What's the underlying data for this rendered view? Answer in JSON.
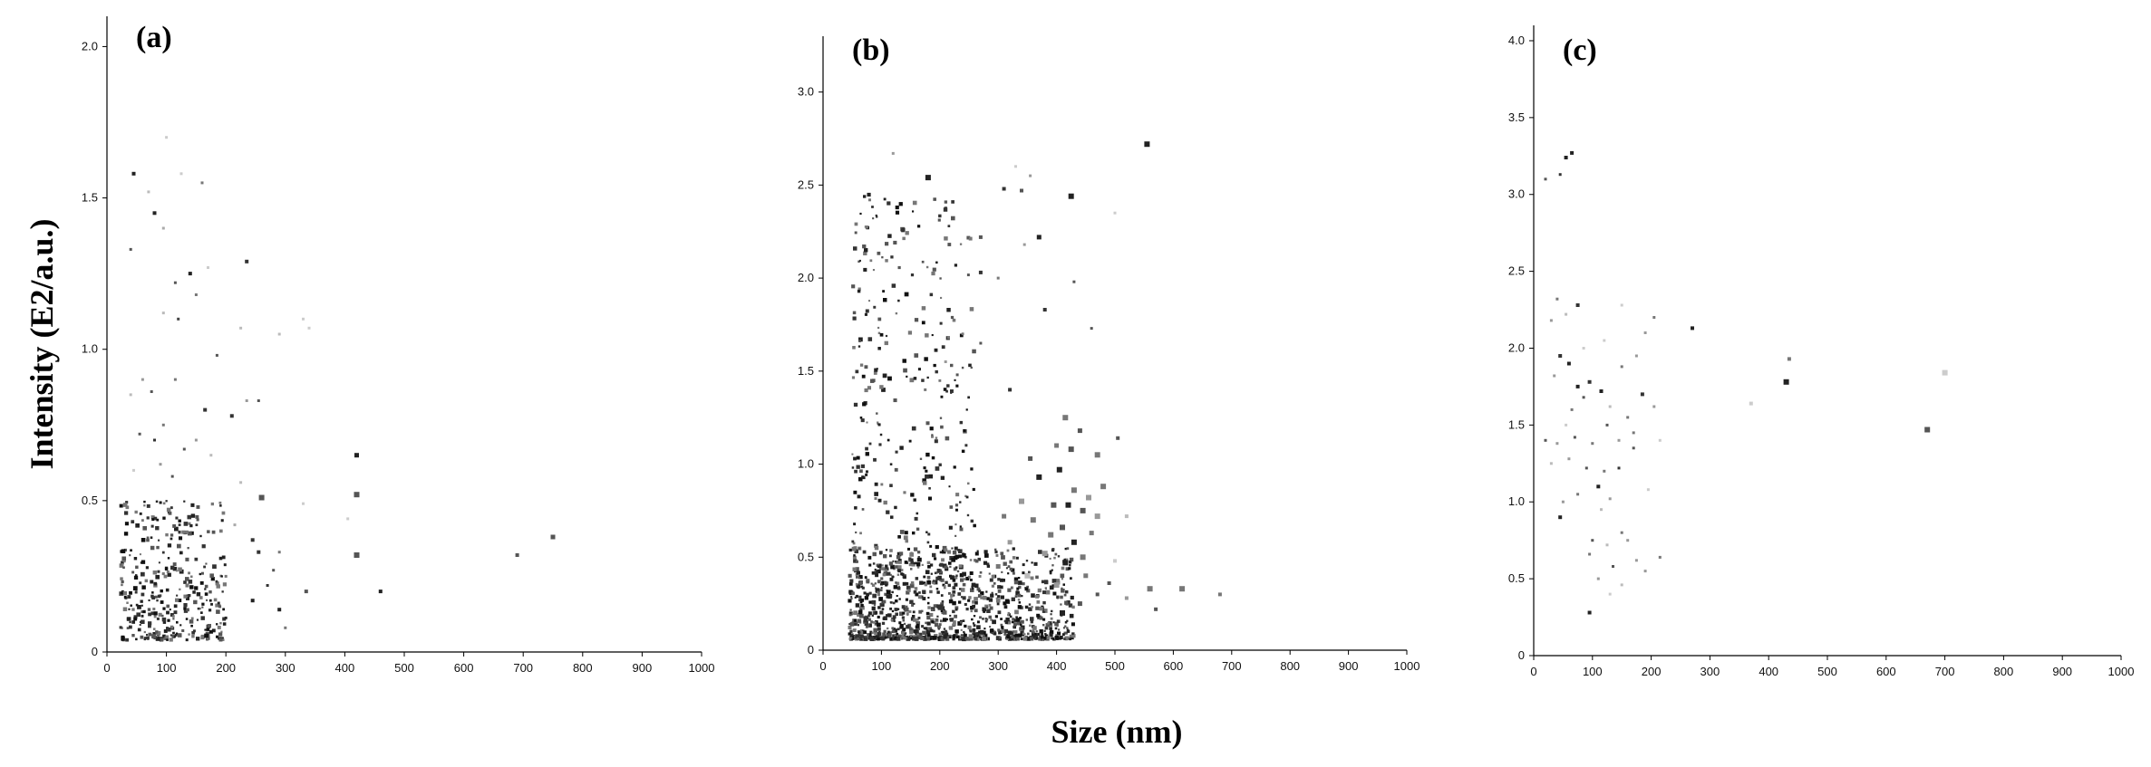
{
  "figure": {
    "ylabel": "Intensity (E2/a.u.)",
    "xlabel": "Size (nm)"
  },
  "chart_data": [
    {
      "type": "scatter",
      "panel_label": "(a)",
      "xlim": [
        0,
        1000
      ],
      "ylim": [
        0,
        2.1
      ],
      "x_ticks": [
        0,
        100,
        200,
        300,
        400,
        500,
        600,
        700,
        800,
        900,
        1000
      ],
      "x_tick_labels": [
        "0",
        "100",
        "200",
        "300",
        "400",
        "500",
        "600",
        "700",
        "800",
        "900",
        "1000"
      ],
      "y_ticks": [
        0,
        0.5,
        1.0,
        1.5,
        2.0
      ],
      "y_tick_labels": [
        "0",
        "0.5",
        "1.0",
        "1.5",
        "2.0"
      ],
      "grid": false,
      "points": [
        [
          45,
          1.58,
          2,
          "#222222"
        ],
        [
          80,
          1.45,
          2,
          "#222222"
        ],
        [
          100,
          1.7,
          1.5,
          "#cccccc"
        ],
        [
          70,
          1.52,
          1.5,
          "#bbbbbb"
        ],
        [
          160,
          1.55,
          1.5,
          "#777777"
        ],
        [
          40,
          1.33,
          1.5,
          "#555555"
        ],
        [
          95,
          1.4,
          1.5,
          "#aaaaaa"
        ],
        [
          125,
          1.58,
          1.5,
          "#cccccc"
        ],
        [
          140,
          1.25,
          2,
          "#222222"
        ],
        [
          235,
          1.29,
          2,
          "#333333"
        ],
        [
          115,
          1.22,
          1.5,
          "#555555"
        ],
        [
          150,
          1.18,
          1.5,
          "#777777"
        ],
        [
          120,
          1.1,
          1.5,
          "#444444"
        ],
        [
          95,
          1.12,
          1.5,
          "#bbbbbb"
        ],
        [
          170,
          1.27,
          1.5,
          "#cccccc"
        ],
        [
          330,
          1.1,
          1.5,
          "#cccccc"
        ],
        [
          340,
          1.07,
          1.5,
          "#cccccc"
        ],
        [
          225,
          1.07,
          1.5,
          "#bbbbbb"
        ],
        [
          185,
          0.98,
          1.5,
          "#555555"
        ],
        [
          290,
          1.05,
          1.5,
          "#bbbbbb"
        ],
        [
          40,
          0.85,
          1.5,
          "#bbbbbb"
        ],
        [
          60,
          0.9,
          1.5,
          "#999999"
        ],
        [
          75,
          0.86,
          1.5,
          "#555555"
        ],
        [
          115,
          0.9,
          1.5,
          "#777777"
        ],
        [
          165,
          0.8,
          2,
          "#333333"
        ],
        [
          210,
          0.78,
          2,
          "#333333"
        ],
        [
          255,
          0.83,
          1.5,
          "#555555"
        ],
        [
          235,
          0.83,
          1.5,
          "#999999"
        ],
        [
          55,
          0.72,
          1.5,
          "#555555"
        ],
        [
          80,
          0.7,
          1.5,
          "#333333"
        ],
        [
          95,
          0.75,
          1.5,
          "#777777"
        ],
        [
          130,
          0.67,
          1.5,
          "#555555"
        ],
        [
          150,
          0.7,
          1.5,
          "#999999"
        ],
        [
          175,
          0.65,
          1.5,
          "#bbbbbb"
        ],
        [
          45,
          0.6,
          1.5,
          "#cccccc"
        ],
        [
          90,
          0.62,
          1.5,
          "#999999"
        ],
        [
          110,
          0.58,
          1.5,
          "#555555"
        ],
        [
          420,
          0.65,
          2.5,
          "#222222"
        ],
        [
          420,
          0.52,
          3,
          "#555555"
        ],
        [
          260,
          0.51,
          3,
          "#555555"
        ],
        [
          420,
          0.32,
          3,
          "#555555"
        ],
        [
          460,
          0.2,
          2,
          "#222222"
        ],
        [
          405,
          0.44,
          1.5,
          "#cccccc"
        ],
        [
          330,
          0.49,
          1.5,
          "#cccccc"
        ],
        [
          690,
          0.32,
          2,
          "#555555"
        ],
        [
          750,
          0.38,
          2.5,
          "#555555"
        ],
        [
          245,
          0.37,
          2,
          "#333333"
        ],
        [
          255,
          0.33,
          2,
          "#333333"
        ],
        [
          290,
          0.33,
          1.5,
          "#777777"
        ],
        [
          280,
          0.27,
          1.5,
          "#555555"
        ],
        [
          270,
          0.22,
          1.5,
          "#333333"
        ],
        [
          245,
          0.17,
          2,
          "#222222"
        ],
        [
          290,
          0.14,
          2,
          "#222222"
        ],
        [
          300,
          0.08,
          1.5,
          "#777777"
        ],
        [
          335,
          0.2,
          2,
          "#555555"
        ],
        [
          225,
          0.56,
          1.5,
          "#bbbbbb"
        ],
        [
          200,
          0.25,
          1.5,
          "#777777"
        ],
        [
          190,
          0.15,
          1.5,
          "#555555"
        ],
        [
          215,
          0.42,
          1.5,
          "#aaaaaa"
        ]
      ],
      "cluster": {
        "seed": 11,
        "count": 360,
        "x_min": 22,
        "x_max": 200,
        "y_min": 0.04,
        "y_max": 0.5,
        "skew": 1.6
      }
    },
    {
      "type": "scatter",
      "panel_label": "(b)",
      "xlim": [
        0,
        1000
      ],
      "ylim": [
        0,
        3.3
      ],
      "x_ticks": [
        0,
        100,
        200,
        300,
        400,
        500,
        600,
        700,
        800,
        900,
        1000
      ],
      "x_tick_labels": [
        "0",
        "100",
        "200",
        "300",
        "400",
        "500",
        "600",
        "700",
        "800",
        "900",
        "1000"
      ],
      "y_ticks": [
        0,
        0.5,
        1.0,
        1.5,
        2.0,
        2.5,
        3.0
      ],
      "y_tick_labels": [
        "0",
        "0.5",
        "1.0",
        "1.5",
        "2.0",
        "2.5",
        "3.0"
      ],
      "grid": false,
      "points": [
        [
          555,
          2.72,
          3,
          "#222222"
        ],
        [
          180,
          2.54,
          3,
          "#222222"
        ],
        [
          425,
          2.44,
          3,
          "#222222"
        ],
        [
          310,
          2.48,
          2,
          "#333333"
        ],
        [
          340,
          2.47,
          2,
          "#555555"
        ],
        [
          330,
          2.6,
          1.5,
          "#cccccc"
        ],
        [
          355,
          2.55,
          1.5,
          "#999999"
        ],
        [
          120,
          2.67,
          1.5,
          "#999999"
        ],
        [
          80,
          2.42,
          1.5,
          "#777777"
        ],
        [
          270,
          2.22,
          2,
          "#555555"
        ],
        [
          370,
          2.22,
          2.5,
          "#222222"
        ],
        [
          345,
          2.18,
          1.5,
          "#999999"
        ],
        [
          500,
          2.35,
          1.5,
          "#cccccc"
        ],
        [
          270,
          2.03,
          2,
          "#333333"
        ],
        [
          300,
          2.0,
          1.5,
          "#777777"
        ],
        [
          380,
          1.83,
          2,
          "#333333"
        ],
        [
          430,
          1.98,
          1.5,
          "#555555"
        ],
        [
          460,
          1.73,
          1.5,
          "#555555"
        ],
        [
          215,
          1.68,
          1.5,
          "#777777"
        ],
        [
          270,
          1.65,
          1.5,
          "#555555"
        ],
        [
          210,
          1.55,
          1.5,
          "#999999"
        ],
        [
          230,
          1.48,
          1.5,
          "#555555"
        ],
        [
          175,
          1.4,
          1.5,
          "#777777"
        ],
        [
          320,
          1.4,
          2,
          "#333333"
        ],
        [
          470,
          1.05,
          3,
          "#777777"
        ],
        [
          415,
          1.25,
          3,
          "#777777"
        ],
        [
          440,
          1.18,
          2.5,
          "#555555"
        ],
        [
          400,
          1.1,
          2.5,
          "#777777"
        ],
        [
          425,
          1.08,
          3,
          "#555555"
        ],
        [
          370,
          0.93,
          3,
          "#222222"
        ],
        [
          405,
          0.97,
          3,
          "#222222"
        ],
        [
          430,
          0.86,
          3,
          "#777777"
        ],
        [
          455,
          0.82,
          3,
          "#999999"
        ],
        [
          480,
          0.88,
          3,
          "#777777"
        ],
        [
          395,
          0.78,
          3,
          "#555555"
        ],
        [
          420,
          0.78,
          3,
          "#222222"
        ],
        [
          445,
          0.75,
          3,
          "#555555"
        ],
        [
          470,
          0.72,
          3,
          "#999999"
        ],
        [
          360,
          0.7,
          3,
          "#777777"
        ],
        [
          390,
          0.62,
          3,
          "#777777"
        ],
        [
          410,
          0.66,
          3,
          "#555555"
        ],
        [
          430,
          0.58,
          3,
          "#222222"
        ],
        [
          460,
          0.63,
          2.5,
          "#777777"
        ],
        [
          380,
          0.52,
          3,
          "#999999"
        ],
        [
          415,
          0.47,
          3,
          "#222222"
        ],
        [
          445,
          0.5,
          3,
          "#777777"
        ],
        [
          500,
          0.48,
          2,
          "#cccccc"
        ],
        [
          520,
          0.72,
          2,
          "#bbbbbb"
        ],
        [
          505,
          1.14,
          2,
          "#555555"
        ],
        [
          355,
          1.03,
          2.5,
          "#555555"
        ],
        [
          340,
          0.8,
          3,
          "#999999"
        ],
        [
          310,
          0.72,
          2.5,
          "#777777"
        ],
        [
          320,
          0.58,
          2.5,
          "#999999"
        ],
        [
          300,
          0.45,
          2.5,
          "#777777"
        ],
        [
          350,
          0.4,
          3,
          "#bbbbbb"
        ],
        [
          400,
          0.35,
          3,
          "#999999"
        ],
        [
          410,
          0.2,
          3,
          "#222222"
        ],
        [
          440,
          0.25,
          2.5,
          "#555555"
        ],
        [
          470,
          0.3,
          2,
          "#555555"
        ],
        [
          560,
          0.33,
          3,
          "#777777"
        ],
        [
          615,
          0.33,
          3,
          "#777777"
        ],
        [
          570,
          0.22,
          2,
          "#555555"
        ],
        [
          680,
          0.3,
          2,
          "#777777"
        ],
        [
          520,
          0.28,
          2,
          "#999999"
        ],
        [
          450,
          0.4,
          2.5,
          "#777777"
        ],
        [
          490,
          0.36,
          2,
          "#555555"
        ]
      ],
      "clusters": [
        {
          "seed": 23,
          "count": 1100,
          "x_min": 45,
          "x_max": 430,
          "y_min": 0.06,
          "y_max": 0.55,
          "skew": 2.2
        },
        {
          "seed": 37,
          "count": 340,
          "x_min": 50,
          "x_max": 260,
          "y_min": 0.35,
          "y_max": 2.45,
          "skew": 1.3
        }
      ]
    },
    {
      "type": "scatter",
      "panel_label": "(c)",
      "xlim": [
        0,
        1000
      ],
      "ylim": [
        0,
        4.1
      ],
      "x_ticks": [
        0,
        100,
        200,
        300,
        400,
        500,
        600,
        700,
        800,
        900,
        1000
      ],
      "x_tick_labels": [
        "0",
        "100",
        "200",
        "300",
        "400",
        "500",
        "600",
        "700",
        "800",
        "900",
        "1000"
      ],
      "y_ticks": [
        0,
        0.5,
        1.0,
        1.5,
        2.0,
        2.5,
        3.0,
        3.5,
        4.0
      ],
      "y_tick_labels": [
        "0",
        "0.5",
        "1.0",
        "1.5",
        "2.0",
        "2.5",
        "3.0",
        "3.5",
        "4.0"
      ],
      "grid": false,
      "points": [
        [
          20,
          3.1,
          1.5,
          "#555555"
        ],
        [
          45,
          3.13,
          1.5,
          "#333333"
        ],
        [
          55,
          3.24,
          2,
          "#222222"
        ],
        [
          65,
          3.27,
          2,
          "#222222"
        ],
        [
          30,
          2.18,
          1.5,
          "#999999"
        ],
        [
          40,
          2.32,
          1.5,
          "#777777"
        ],
        [
          75,
          2.28,
          2,
          "#333333"
        ],
        [
          55,
          2.22,
          1.5,
          "#bbbbbb"
        ],
        [
          150,
          2.28,
          1.5,
          "#cccccc"
        ],
        [
          205,
          2.2,
          1.5,
          "#777777"
        ],
        [
          270,
          2.13,
          2,
          "#222222"
        ],
        [
          190,
          2.1,
          1.5,
          "#999999"
        ],
        [
          120,
          2.05,
          1.5,
          "#cccccc"
        ],
        [
          45,
          1.95,
          2,
          "#333333"
        ],
        [
          60,
          1.9,
          2,
          "#222222"
        ],
        [
          35,
          1.82,
          1.5,
          "#999999"
        ],
        [
          75,
          1.75,
          2,
          "#222222"
        ],
        [
          95,
          1.78,
          2,
          "#333333"
        ],
        [
          115,
          1.72,
          2,
          "#222222"
        ],
        [
          150,
          1.88,
          1.5,
          "#777777"
        ],
        [
          175,
          1.95,
          1.5,
          "#999999"
        ],
        [
          85,
          1.68,
          1.5,
          "#555555"
        ],
        [
          65,
          1.6,
          1.5,
          "#777777"
        ],
        [
          185,
          1.7,
          2,
          "#333333"
        ],
        [
          205,
          1.62,
          1.5,
          "#999999"
        ],
        [
          160,
          1.55,
          1.5,
          "#777777"
        ],
        [
          125,
          1.5,
          1.5,
          "#555555"
        ],
        [
          20,
          1.4,
          1.5,
          "#555555"
        ],
        [
          40,
          1.38,
          1.5,
          "#999999"
        ],
        [
          70,
          1.42,
          1.5,
          "#555555"
        ],
        [
          100,
          1.38,
          1.5,
          "#777777"
        ],
        [
          145,
          1.4,
          1.5,
          "#999999"
        ],
        [
          170,
          1.45,
          1.5,
          "#777777"
        ],
        [
          215,
          1.4,
          1.5,
          "#cccccc"
        ],
        [
          60,
          1.28,
          1.5,
          "#999999"
        ],
        [
          90,
          1.22,
          1.5,
          "#555555"
        ],
        [
          120,
          1.2,
          1.5,
          "#777777"
        ],
        [
          145,
          1.22,
          1.5,
          "#333333"
        ],
        [
          30,
          1.25,
          1.5,
          "#bbbbbb"
        ],
        [
          110,
          1.1,
          2,
          "#222222"
        ],
        [
          75,
          1.05,
          1.5,
          "#777777"
        ],
        [
          50,
          1.0,
          1.5,
          "#999999"
        ],
        [
          45,
          0.9,
          2,
          "#222222"
        ],
        [
          130,
          1.02,
          1.5,
          "#999999"
        ],
        [
          100,
          0.75,
          1.5,
          "#555555"
        ],
        [
          150,
          0.8,
          1.5,
          "#777777"
        ],
        [
          160,
          0.75,
          1.5,
          "#999999"
        ],
        [
          95,
          0.66,
          1.5,
          "#777777"
        ],
        [
          125,
          0.72,
          1.5,
          "#bbbbbb"
        ],
        [
          215,
          0.64,
          1.5,
          "#777777"
        ],
        [
          190,
          0.55,
          1.5,
          "#999999"
        ],
        [
          135,
          0.58,
          1.5,
          "#555555"
        ],
        [
          110,
          0.5,
          1.5,
          "#999999"
        ],
        [
          150,
          0.46,
          1.5,
          "#bbbbbb"
        ],
        [
          130,
          0.4,
          1.5,
          "#cccccc"
        ],
        [
          95,
          0.28,
          2,
          "#222222"
        ],
        [
          370,
          1.64,
          2,
          "#cccccc"
        ],
        [
          430,
          1.78,
          3,
          "#222222"
        ],
        [
          435,
          1.93,
          2,
          "#777777"
        ],
        [
          670,
          1.47,
          3,
          "#555555"
        ],
        [
          700,
          1.84,
          3,
          "#cccccc"
        ],
        [
          85,
          2.0,
          1.5,
          "#cccccc"
        ],
        [
          130,
          1.62,
          1.5,
          "#bbbbbb"
        ],
        [
          170,
          1.35,
          1.5,
          "#555555"
        ],
        [
          195,
          1.08,
          1.5,
          "#cccccc"
        ],
        [
          55,
          1.5,
          1.5,
          "#cccccc"
        ],
        [
          115,
          0.95,
          1.5,
          "#bbbbbb"
        ],
        [
          175,
          0.62,
          1.5,
          "#999999"
        ]
      ]
    }
  ]
}
